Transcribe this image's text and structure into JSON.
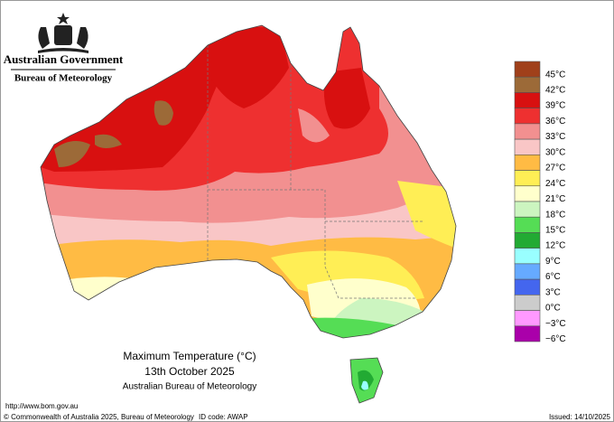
{
  "header": {
    "title": "Australian Government",
    "subtitle": "Bureau of Meteorology"
  },
  "legend": [
    {
      "label": "45°C",
      "color": "#a0401a"
    },
    {
      "label": "42°C",
      "color": "#9c6a38"
    },
    {
      "label": "39°C",
      "color": "#d81010"
    },
    {
      "label": "36°C",
      "color": "#ee3030"
    },
    {
      "label": "33°C",
      "color": "#f29090"
    },
    {
      "label": "30°C",
      "color": "#f9c6c6"
    },
    {
      "label": "27°C",
      "color": "#ffbb44"
    },
    {
      "label": "24°C",
      "color": "#ffee55"
    },
    {
      "label": "21°C",
      "color": "#ffffcc"
    },
    {
      "label": "18°C",
      "color": "#ccf5c0"
    },
    {
      "label": "15°C",
      "color": "#55dd55"
    },
    {
      "label": "12°C",
      "color": "#22aa33"
    },
    {
      "label": "9°C",
      "color": "#99ffff"
    },
    {
      "label": "6°C",
      "color": "#66aaff"
    },
    {
      "label": "3°C",
      "color": "#4466ee"
    },
    {
      "label": "0°C",
      "color": "#cccccc"
    },
    {
      "label": "−3°C",
      "color": "#ff99ff"
    },
    {
      "label": "−6°C",
      "color": "#aa00aa"
    }
  ],
  "caption": {
    "title": "Maximum Temperature (°C)",
    "date": "13th October 2025",
    "source": "Australian Bureau of Meteorology"
  },
  "footer": {
    "url": "http://www.bom.gov.au",
    "copyright": "© Commonwealth of Australia 2025, Bureau of Meteorology",
    "id_code": "ID code: AWAP",
    "issued": "Issued: 14/10/2025"
  }
}
